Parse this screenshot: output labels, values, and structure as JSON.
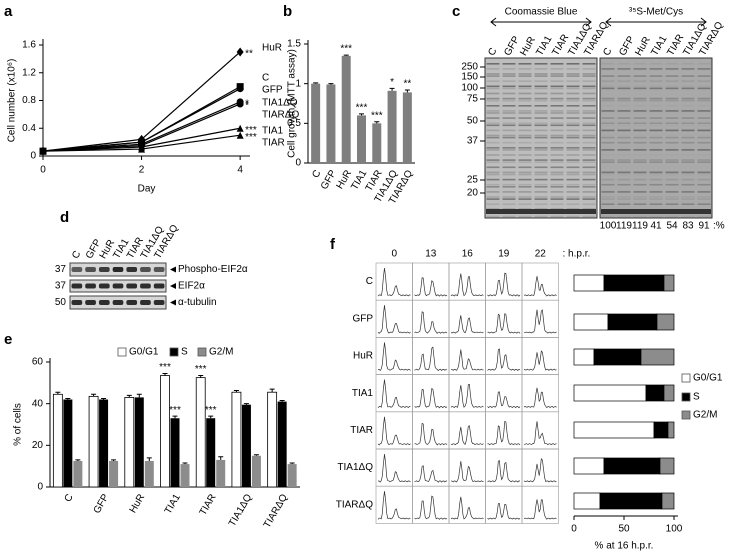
{
  "chart_data": [
    {
      "panel": "a",
      "type": "line",
      "xlabel": "Day",
      "ylabel": "Cell number (x10⁶)",
      "x": [
        0,
        2,
        4
      ],
      "xlim": [
        0,
        4.2
      ],
      "xticks": [
        0,
        2,
        4
      ],
      "ylim": [
        0,
        1.6
      ],
      "yticks": [
        0,
        0.4,
        0.8,
        1.2,
        1.6
      ],
      "series": [
        {
          "name": "HuR",
          "color": "#000000",
          "marker": "diamond",
          "values": [
            0.07,
            0.24,
            1.5
          ],
          "significance": "**"
        },
        {
          "name": "C",
          "color": "#000000",
          "marker": "square",
          "values": [
            0.07,
            0.2,
            1.0
          ]
        },
        {
          "name": "GFP",
          "color": "#000000",
          "marker": "circle",
          "values": [
            0.07,
            0.2,
            0.97
          ]
        },
        {
          "name": "TIA1ΔQ",
          "color": "#000000",
          "marker": "circle",
          "values": [
            0.07,
            0.17,
            0.78
          ],
          "significance": "*"
        },
        {
          "name": "TIARΔQ",
          "color": "#000000",
          "marker": "circle",
          "values": [
            0.07,
            0.15,
            0.75
          ],
          "significance": "*"
        },
        {
          "name": "TIA1",
          "color": "#000000",
          "marker": "triangle",
          "values": [
            0.07,
            0.13,
            0.4
          ],
          "significance": "***"
        },
        {
          "name": "TIAR",
          "color": "#000000",
          "marker": "triangle",
          "values": [
            0.07,
            0.1,
            0.3
          ],
          "significance": "***"
        }
      ]
    },
    {
      "panel": "b",
      "type": "bar",
      "ylabel": "Cell growth (MTT assay)",
      "color": "#7f7f7f",
      "categories": [
        "C",
        "GFP",
        "HuR",
        "TIA1",
        "TIAR",
        "TIA1ΔQ",
        "TIARΔQ"
      ],
      "values": [
        1.0,
        0.99,
        1.35,
        0.6,
        0.5,
        0.91,
        0.89
      ],
      "errors": [
        0.01,
        0.01,
        0.01,
        0.02,
        0.02,
        0.03,
        0.03
      ],
      "significance": [
        null,
        null,
        "***",
        "***",
        "***",
        "*",
        "**"
      ],
      "ylim": [
        0,
        1.5
      ],
      "yticks": [
        0,
        0.5,
        1,
        1.5
      ]
    },
    {
      "panel": "e",
      "type": "bar",
      "ylabel": "% of cells",
      "categories": [
        "C",
        "GFP",
        "HuR",
        "TIA1",
        "TIAR",
        "TIA1ΔQ",
        "TIARΔQ"
      ],
      "ylim": [
        0,
        60
      ],
      "yticks": [
        0,
        20,
        40,
        60
      ],
      "series": [
        {
          "name": "G0/G1",
          "color": "#ffffff",
          "values": [
            44.5,
            43.5,
            43,
            53.5,
            52.5,
            45.5,
            45.5
          ],
          "errors": [
            1,
            1,
            1,
            1,
            1,
            0.8,
            1.5
          ],
          "significance": [
            null,
            null,
            null,
            "***",
            "***",
            null,
            null
          ]
        },
        {
          "name": "S",
          "color": "#000000",
          "values": [
            42,
            42,
            43,
            33,
            33,
            39.5,
            41
          ],
          "errors": [
            0.5,
            0.5,
            1.5,
            1,
            1,
            0.5,
            0.5
          ],
          "significance": [
            null,
            null,
            null,
            "***",
            "***",
            null,
            null
          ]
        },
        {
          "name": "G2/M",
          "color": "#8c8c8c",
          "values": [
            12.5,
            12.5,
            12.5,
            11,
            13,
            15,
            11
          ],
          "errors": [
            0.5,
            0.5,
            1.5,
            0.5,
            1.5,
            0.5,
            0.5
          ]
        }
      ]
    },
    {
      "panel": "f",
      "type": "bar",
      "stacked": true,
      "orientation": "horizontal",
      "xlabel": "% at 16 h.p.r.",
      "categories": [
        "C",
        "GFP",
        "HuR",
        "TIA1",
        "TIAR",
        "TIA1ΔQ",
        "TIARΔQ"
      ],
      "xlim": [
        0,
        100
      ],
      "xticks": [
        0,
        50,
        100
      ],
      "series": [
        {
          "name": "G0/G1",
          "color": "#ffffff",
          "values": [
            30,
            34,
            20,
            72,
            80,
            30,
            26
          ]
        },
        {
          "name": "S",
          "color": "#000000",
          "values": [
            60,
            49,
            47,
            18,
            14,
            56,
            62
          ]
        },
        {
          "name": "G2/M",
          "color": "#8c8c8c",
          "values": [
            10,
            17,
            33,
            10,
            6,
            14,
            12
          ]
        }
      ]
    }
  ],
  "panels": {
    "c": {
      "panel": "c",
      "groups": [
        {
          "label": "Coomassie Blue",
          "lanes": [
            "C",
            "GFP",
            "HuR",
            "TIA1",
            "TIAR",
            "TIA1ΔQ",
            "TIARΔQ"
          ]
        },
        {
          "label": "³⁵S-Met/Cys",
          "lanes": [
            "C",
            "GFP",
            "HuR",
            "TIA1",
            "TIAR",
            "TIA1ΔQ",
            "TIARΔQ"
          ]
        }
      ],
      "mw_markers": [
        250,
        150,
        100,
        75,
        50,
        37,
        25,
        20
      ],
      "quantification": [
        100,
        119,
        119,
        41,
        54,
        83,
        91
      ],
      "unit": ":%"
    },
    "d": {
      "panel": "d",
      "lanes": [
        "C",
        "GFP",
        "HuR",
        "TIA1",
        "TIAR",
        "TIA1ΔQ",
        "TIARΔQ"
      ],
      "rows": [
        {
          "mw": 37,
          "label": "Phospho-EIF2α"
        },
        {
          "mw": 37,
          "label": "EIF2α"
        },
        {
          "mw": 50,
          "label": "α-tubulin"
        }
      ]
    },
    "f": {
      "columns": [
        "0",
        "13",
        "16",
        "19",
        "22"
      ],
      "unit": ": h.p.r."
    }
  }
}
